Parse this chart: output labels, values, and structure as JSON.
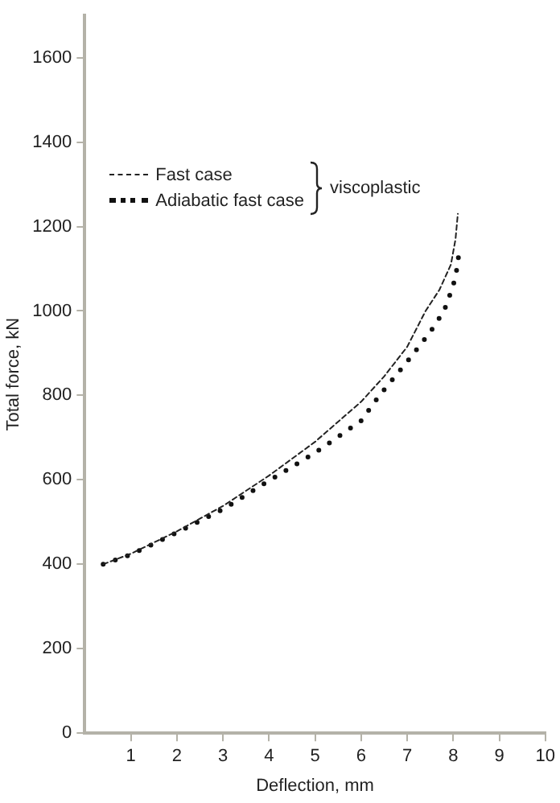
{
  "chart_data": {
    "type": "line",
    "xlabel": "Deflection, mm",
    "ylabel": "Total force, kN",
    "legend_title": "viscoplastic",
    "legend": "top left",
    "grid": false,
    "marker": "none",
    "xlim": [
      0,
      10
    ],
    "xticks": [
      1,
      2,
      3,
      4,
      5,
      6,
      7,
      8,
      9,
      10
    ],
    "ylim": [
      0,
      1700
    ],
    "yticks": [
      0,
      200,
      400,
      600,
      800,
      1000,
      1200,
      1400,
      1600
    ],
    "series": [
      {
        "name": "Fast case",
        "color": "#222222",
        "line_style": "dashed",
        "x": [
          0.4,
          1,
          2,
          3,
          4,
          5,
          6,
          6.5,
          7,
          7.4,
          7.7,
          7.95,
          8.05,
          8.1
        ],
        "values": [
          400,
          425,
          478,
          538,
          610,
          690,
          785,
          845,
          915,
          1000,
          1050,
          1110,
          1170,
          1230
        ]
      },
      {
        "name": "Adiabatic fast case",
        "color": "#111111",
        "line_style": "dotted",
        "x": [
          0.4,
          1,
          2,
          3,
          4,
          5,
          6,
          6.4,
          7,
          7.5,
          7.8,
          8,
          8.1,
          8.13
        ],
        "values": [
          400,
          423,
          475,
          530,
          598,
          664,
          740,
          800,
          880,
          950,
          1000,
          1060,
          1110,
          1150
        ]
      }
    ]
  }
}
